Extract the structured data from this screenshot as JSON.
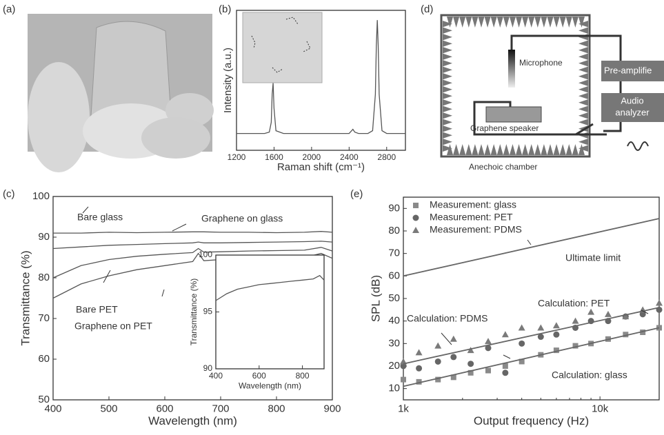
{
  "panel_labels": [
    "(a)",
    "(b)",
    "(c)",
    "(d)",
    "(e)"
  ],
  "diagram": {
    "microphone": "Microphone",
    "preamp": "Pre-amplifie",
    "analyzer": [
      "Audio",
      "analyzer"
    ],
    "speaker": "Graphene speaker",
    "chamber": "Anechoic chamber"
  },
  "chart_data": [
    {
      "type": "line",
      "xlabel": "Raman shift (cm⁻¹)",
      "ylabel": "Intensity (a.u.)",
      "xlim": [
        1200,
        3000
      ],
      "xticks": [
        1200,
        1600,
        2000,
        2400,
        2800
      ],
      "ylim": [
        0,
        100
      ],
      "x": [
        1200,
        1400,
        1500,
        1550,
        1570,
        1580,
        1590,
        1600,
        1620,
        1700,
        2000,
        2400,
        2440,
        2460,
        2500,
        2600,
        2650,
        2680,
        2690,
        2700,
        2710,
        2720,
        2750,
        2800,
        3000
      ],
      "series": [
        {
          "color": "#555555",
          "values": [
            12,
            12,
            12,
            13,
            20,
            40,
            48,
            30,
            14,
            12,
            12,
            12,
            15,
            13,
            12,
            12,
            14,
            40,
            75,
            93,
            75,
            40,
            14,
            12,
            12
          ]
        }
      ]
    },
    {
      "type": "line",
      "xlabel": "Wavelength (nm)",
      "ylabel": "Transmittance (%)",
      "xlim": [
        400,
        900
      ],
      "xticks": [
        400,
        500,
        600,
        700,
        800,
        900
      ],
      "ylim": [
        50,
        100
      ],
      "yticks": [
        50,
        60,
        70,
        80,
        90,
        100
      ],
      "x": [
        400,
        450,
        500,
        550,
        600,
        650,
        660,
        670,
        700,
        750,
        800,
        850,
        880,
        900
      ],
      "annotations": [
        "Bare glass",
        "Graphene on glass",
        "Bare PET",
        "Graphene on PET"
      ],
      "series": [
        {
          "color": "#555555",
          "values": [
            91,
            91,
            91.2,
            91.1,
            91.2,
            91.3,
            91.3,
            91.3,
            91.2,
            91.2,
            91.1,
            91.2,
            91.4,
            91.2
          ]
        },
        {
          "color": "#555555",
          "values": [
            87.2,
            87.6,
            88,
            88.2,
            88.4,
            88.6,
            88.8,
            88.6,
            88.6,
            88.7,
            88.8,
            88.9,
            89,
            88.8
          ]
        },
        {
          "color": "#555555",
          "values": [
            80,
            83,
            84.5,
            85.3,
            85.8,
            86.2,
            87.2,
            86.3,
            86.4,
            86.6,
            86.7,
            86.8,
            87.5,
            86.6
          ]
        },
        {
          "color": "#555555",
          "values": [
            75,
            78.5,
            80.5,
            82,
            83,
            84,
            86,
            84.2,
            84.5,
            84.7,
            84.8,
            85,
            86,
            84.8
          ]
        }
      ]
    },
    {
      "type": "line",
      "xlabel": "Wavelength (nm)",
      "ylabel": "Transmittance (%)",
      "xlim": [
        400,
        900
      ],
      "xticks": [
        400,
        600,
        800
      ],
      "ylim": [
        90,
        100
      ],
      "yticks": [
        90,
        95,
        100
      ],
      "x": [
        400,
        450,
        500,
        550,
        600,
        650,
        700,
        750,
        800,
        850,
        880,
        900
      ],
      "series": [
        {
          "color": "#555555",
          "values": [
            96,
            96.6,
            97,
            97.2,
            97.4,
            97.5,
            97.6,
            97.7,
            97.8,
            97.9,
            98.2,
            97.8
          ]
        }
      ]
    },
    {
      "type": "scatter",
      "xlabel": "Output frequency (Hz)",
      "ylabel": "SPL (dB)",
      "xlog": true,
      "xlim": [
        1000,
        20000
      ],
      "xticks": [
        {
          "value": 1000,
          "label": "1k"
        },
        {
          "value": 10000,
          "label": "10k"
        }
      ],
      "ylim": [
        5,
        95
      ],
      "yticks": [
        10,
        20,
        30,
        40,
        50,
        60,
        70,
        80,
        90
      ],
      "x": [
        1000,
        1200,
        1500,
        1800,
        2200,
        2700,
        3300,
        4000,
        5000,
        6000,
        7500,
        9000,
        11000,
        13500,
        16500,
        20000
      ],
      "annotations": [
        "Calculation: PDMS"
      ],
      "series": [
        {
          "name": "Measurement: glass",
          "marker": "square",
          "color": "#8a8a8a",
          "values": [
            14,
            13,
            14,
            15,
            17,
            18,
            20,
            22,
            25,
            27,
            29,
            30,
            32,
            34,
            35,
            37
          ]
        },
        {
          "name": "Measurement: PET",
          "marker": "circle",
          "color": "#666666",
          "values": [
            20,
            19,
            22,
            24,
            21,
            28,
            17,
            30,
            33,
            34,
            37,
            40,
            40,
            42,
            43,
            45
          ]
        },
        {
          "name": "Measurement: PDMS",
          "marker": "triangle",
          "color": "#7a7a7a",
          "values": [
            22,
            26,
            29,
            32,
            27,
            31,
            34,
            37,
            37,
            38,
            40,
            44,
            43,
            42,
            45,
            48
          ]
        },
        {
          "name": "Ultimate limit",
          "color": "#666666",
          "x": [
            1000,
            20000
          ],
          "values": [
            60,
            85.5
          ]
        },
        {
          "name": "Calculation: PET",
          "color": "#666666",
          "x": [
            1000,
            20000
          ],
          "values": [
            21,
            46
          ]
        },
        {
          "name": "Calculation: glass",
          "color": "#666666",
          "x": [
            1000,
            20000
          ],
          "values": [
            11,
            37
          ]
        }
      ]
    }
  ]
}
